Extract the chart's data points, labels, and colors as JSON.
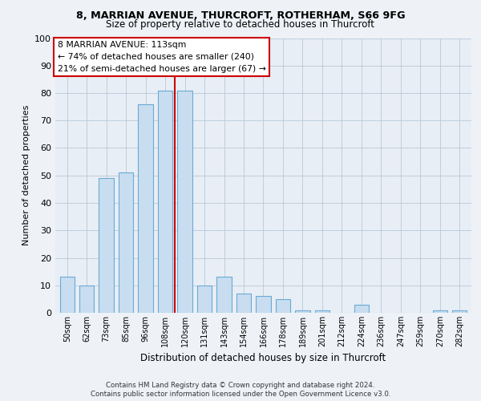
{
  "title1": "8, MARRIAN AVENUE, THURCROFT, ROTHERHAM, S66 9FG",
  "title2": "Size of property relative to detached houses in Thurcroft",
  "xlabel": "Distribution of detached houses by size in Thurcroft",
  "ylabel": "Number of detached properties",
  "bar_labels": [
    "50sqm",
    "62sqm",
    "73sqm",
    "85sqm",
    "96sqm",
    "108sqm",
    "120sqm",
    "131sqm",
    "143sqm",
    "154sqm",
    "166sqm",
    "178sqm",
    "189sqm",
    "201sqm",
    "212sqm",
    "224sqm",
    "236sqm",
    "247sqm",
    "259sqm",
    "270sqm",
    "282sqm"
  ],
  "bar_values": [
    13,
    10,
    49,
    51,
    76,
    81,
    81,
    10,
    13,
    7,
    6,
    5,
    1,
    1,
    0,
    3,
    0,
    0,
    0,
    1,
    1
  ],
  "bar_color": "#c8ddf0",
  "bar_edgecolor": "#6aaad4",
  "bar_width": 0.75,
  "vline_x": 6.0,
  "vline_color": "#cc0000",
  "annotation_title": "8 MARRIAN AVENUE: 113sqm",
  "annotation_line1": "← 74% of detached houses are smaller (240)",
  "annotation_line2": "21% of semi-detached houses are larger (67) →",
  "annotation_box_color": "#ffffff",
  "annotation_box_edgecolor": "#cc0000",
  "ylim": [
    0,
    100
  ],
  "yticks": [
    0,
    10,
    20,
    30,
    40,
    50,
    60,
    70,
    80,
    90,
    100
  ],
  "footer1": "Contains HM Land Registry data © Crown copyright and database right 2024.",
  "footer2": "Contains public sector information licensed under the Open Government Licence v3.0.",
  "background_color": "#eef2f7",
  "plot_bg_color": "#e8eef5"
}
